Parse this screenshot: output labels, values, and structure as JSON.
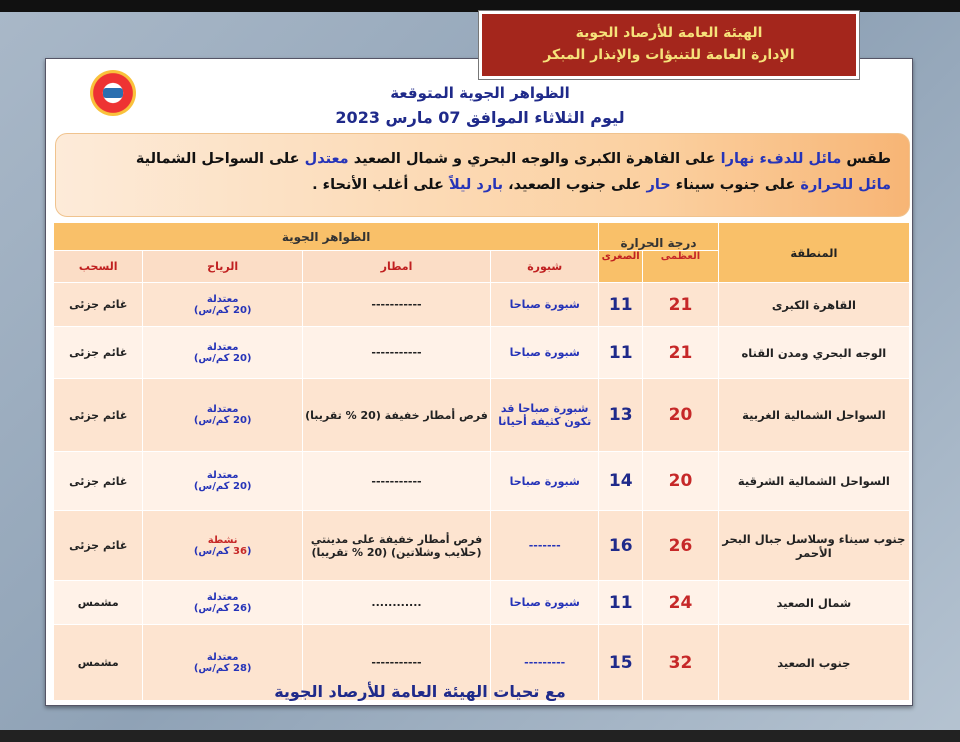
{
  "header": {
    "org": "الهيئة العامة للأرصاد الجوية",
    "dept": "الإدارة العامة للتنبؤات والإنذار المبكر"
  },
  "title": "الظواهر الجوية المتوقعة",
  "date": "ليوم الثلاثاء الموافق 07 مارس 2023",
  "summary": [
    {
      "t": "طقس ",
      "hl": false
    },
    {
      "t": "مائل للدفء نهارا",
      "hl": true
    },
    {
      "t": " على القاهرة الكبرى والوجه البحري و شمال الصعيد ",
      "hl": false
    },
    {
      "t": "معتدل",
      "hl": true
    },
    {
      "t": " على السواحل الشمالية ",
      "hl": false
    },
    {
      "t": "مائل للحرارة",
      "hl": true
    },
    {
      "t": " على جنوب سيناء ",
      "hl": false
    },
    {
      "t": "حار",
      "hl": true
    },
    {
      "t": " على جنوب الصعيد، ",
      "hl": false
    },
    {
      "t": "بارد ليلاً",
      "hl": true
    },
    {
      "t": " على أغلب الأنحاء .",
      "hl": false
    }
  ],
  "table": {
    "headers": {
      "region": "المنطقة",
      "temp": "درجة الحرارة",
      "max": "العظمى",
      "min": "الصغرى",
      "phenomena": "الظواهر الجوية",
      "fog": "شبورة",
      "rain": "امطار",
      "wind": "الرياح",
      "cloud": "السحب"
    },
    "rows": [
      {
        "region": "القاهرة الكبرى",
        "max": "21",
        "min": "11",
        "fog": "شبورة صباحا",
        "rain": "-----------",
        "wind_desc": "معتدلة",
        "wind_speed": "20",
        "cloud": "غائم جزئى"
      },
      {
        "region": "الوجه البحري ومدن القناه",
        "max": "21",
        "min": "11",
        "fog": "شبورة صباحا",
        "rain": "-----------",
        "wind_desc": "معتدلة",
        "wind_speed": "20",
        "cloud": "غائم جزئى"
      },
      {
        "region": "السواحل الشمالية الغربية",
        "max": "20",
        "min": "13",
        "fog": "شبورة صباحا قد تكون كثيفة أحيانا",
        "rain": "فرص أمطار خفيفة (20 % تقريبا)",
        "wind_desc": "معتدلة",
        "wind_speed": "20",
        "cloud": "غائم جزئى"
      },
      {
        "region": "السواحل الشمالية الشرقية",
        "max": "20",
        "min": "14",
        "fog": "شبورة صباحا",
        "rain": "-----------",
        "wind_desc": "معتدلة",
        "wind_speed": "20",
        "cloud": "غائم جزئى"
      },
      {
        "region": "جنوب سيناء وسلاسل جبال البحر الأحمر",
        "max": "26",
        "min": "16",
        "fog": "-------",
        "rain": "فرص أمطار خفيفة على مدينتي (حلايب وشلاتين) (20 % تقريبا)",
        "wind_desc": "نشطة",
        "wind_speed": "36",
        "cloud": "غائم جزئى",
        "wind_strong": true
      },
      {
        "region": "شمال الصعيد",
        "max": "24",
        "min": "11",
        "fog": "شبورة صباحا",
        "rain": "............",
        "wind_desc": "معتدلة",
        "wind_speed": "26",
        "cloud": "مشمس"
      },
      {
        "region": "جنوب الصعيد",
        "max": "32",
        "min": "15",
        "fog": "---------",
        "rain": "-----------",
        "wind_desc": "معتدلة",
        "wind_speed": "28",
        "cloud": "مشمس"
      }
    ],
    "wind_unit": "كم/س"
  },
  "footer": "مع تحيات الهيئة العامة للأرصاد الجوية",
  "colors": {
    "red_banner": "#a4261c",
    "banner_text": "#f6e27a",
    "title_blue": "#1f2a8a",
    "max_red": "#c62828",
    "header_orange": "#f9c069"
  }
}
